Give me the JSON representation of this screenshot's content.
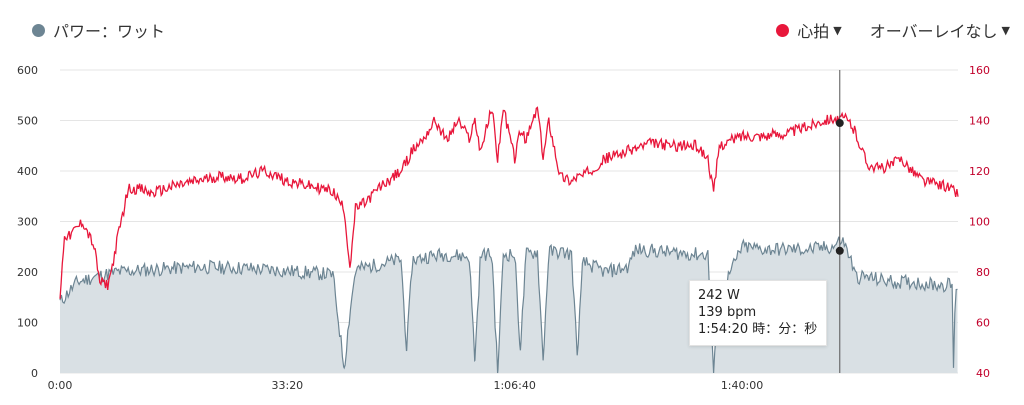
{
  "legend": {
    "power_label": "パワー：ワット",
    "power_color": "#6d8593",
    "hr_label": "心拍",
    "hr_color": "#e8173b",
    "overlay_label": "オーバーレイなし",
    "caret_icon": "caret-down-icon"
  },
  "tooltip": {
    "power": "242 W",
    "hr": "139 bpm",
    "time": "1:54:20 時：分：秒"
  },
  "chart_data": {
    "type": "line",
    "x_unit": "h:mm:ss",
    "x_ticks": [
      "0:00",
      "33:20",
      "1:06:40",
      "1:40:00"
    ],
    "x_tick_seconds": [
      0,
      2000,
      4000,
      6000
    ],
    "x_range_seconds": [
      0,
      7900
    ],
    "y_left": {
      "ticks": [
        0,
        100,
        200,
        300,
        400,
        500,
        600
      ],
      "range": [
        0,
        600
      ]
    },
    "y_right": {
      "ticks": [
        40,
        60,
        80,
        100,
        120,
        140,
        160
      ],
      "range": [
        40,
        160
      ]
    },
    "grid": true,
    "cursor_seconds": 6860,
    "series": [
      {
        "name": "パワー：ワット",
        "axis": "left",
        "style": "area",
        "color": "#6d8593",
        "fill": "#d9e0e4",
        "x": [
          0,
          150,
          300,
          500,
          800,
          1200,
          1600,
          2000,
          2400,
          2500,
          2550,
          2600,
          2800,
          3000,
          3050,
          3100,
          3150,
          3200,
          3400,
          3600,
          3650,
          3700,
          3800,
          3850,
          3900,
          4000,
          4050,
          4100,
          4200,
          4250,
          4300,
          4400,
          4500,
          4550,
          4600,
          4800,
          5000,
          5050,
          5100,
          5300,
          5600,
          5700,
          5750,
          5800,
          6000,
          6200,
          6400,
          6600,
          6800,
          6880,
          6950,
          7000,
          7100,
          7200,
          7350,
          7500,
          7700,
          7850,
          7860,
          7880,
          7900
        ],
        "values": [
          140,
          180,
          190,
          200,
          205,
          210,
          208,
          202,
          195,
          10,
          120,
          205,
          215,
          225,
          45,
          225,
          225,
          230,
          235,
          230,
          25,
          235,
          235,
          0,
          235,
          235,
          45,
          235,
          240,
          25,
          240,
          240,
          235,
          35,
          220,
          200,
          210,
          240,
          245,
          240,
          235,
          235,
          0,
          150,
          250,
          245,
          245,
          245,
          250,
          265,
          230,
          190,
          190,
          185,
          180,
          180,
          175,
          175,
          10,
          175,
          170
        ]
      },
      {
        "name": "心拍",
        "axis": "right",
        "style": "line",
        "color": "#e8173b",
        "x": [
          0,
          40,
          80,
          200,
          250,
          300,
          350,
          420,
          460,
          500,
          600,
          700,
          800,
          1000,
          1200,
          1400,
          1600,
          1800,
          2000,
          2200,
          2400,
          2500,
          2550,
          2600,
          2700,
          2800,
          3000,
          3100,
          3200,
          3300,
          3400,
          3500,
          3600,
          3650,
          3700,
          3800,
          3850,
          3900,
          4000,
          4050,
          4100,
          4200,
          4250,
          4300,
          4400,
          4500,
          4550,
          4600,
          4800,
          5000,
          5200,
          5400,
          5600,
          5700,
          5750,
          5800,
          5900,
          6000,
          6200,
          6400,
          6600,
          6700,
          6800,
          6850,
          6900,
          6950,
          7000,
          7100,
          7200,
          7300,
          7400,
          7500,
          7600,
          7700,
          7800,
          7900
        ],
        "values": [
          70,
          95,
          94,
          100,
          95,
          90,
          76,
          75,
          82,
          92,
          113,
          113,
          111,
          114,
          116,
          118,
          117,
          120,
          116,
          114,
          112,
          105,
          82,
          105,
          108,
          113,
          120,
          128,
          133,
          140,
          132,
          140,
          133,
          140,
          128,
          145,
          125,
          145,
          125,
          136,
          132,
          145,
          125,
          140,
          118,
          116,
          118,
          118,
          125,
          128,
          131,
          130,
          130,
          125,
          111,
          130,
          132,
          134,
          134,
          135,
          138,
          140,
          141,
          140,
          141,
          139,
          135,
          123,
          121,
          122,
          125,
          120,
          116,
          115,
          114,
          111
        ]
      }
    ]
  }
}
